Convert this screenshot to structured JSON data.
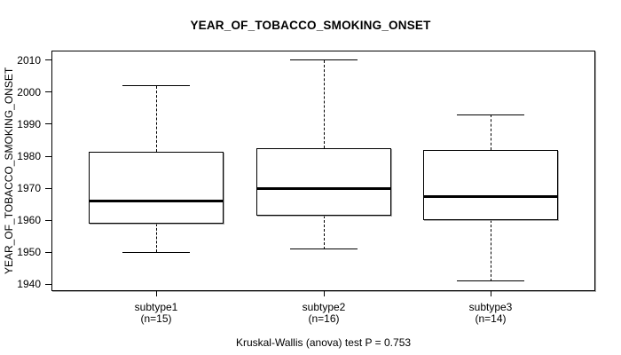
{
  "figure": {
    "title": "YEAR_OF_TOBACCO_SMOKING_ONSET",
    "caption": "Kruskal-Wallis (anova) test P = 0.753"
  },
  "chart_data": {
    "type": "boxplot",
    "title": "YEAR_OF_TOBACCO_SMOKING_ONSET",
    "ylabel": "YEAR_OF_TOBACCO_SMOKING_ONSET",
    "xlabel": "",
    "categories": [
      "subtype1",
      "subtype2",
      "subtype3"
    ],
    "category_sublabels": [
      "(n=15)",
      "(n=16)",
      "(n=14)"
    ],
    "sample_sizes": [
      15,
      16,
      14
    ],
    "y_ticks": [
      1940,
      1950,
      1960,
      1970,
      1980,
      1990,
      2000,
      2010
    ],
    "ylim": [
      1938,
      2013
    ],
    "grid": false,
    "legend": "none",
    "series": [
      {
        "name": "subtype1",
        "n": 15,
        "whisker_low": 1950,
        "q1": 1959,
        "median": 1966,
        "q3": 1981.5,
        "whisker_high": 2002,
        "outliers": []
      },
      {
        "name": "subtype2",
        "n": 16,
        "whisker_low": 1951,
        "q1": 1961.5,
        "median": 1970,
        "q3": 1982.5,
        "whisker_high": 2010,
        "outliers": []
      },
      {
        "name": "subtype3",
        "n": 14,
        "whisker_low": 1941,
        "q1": 1960,
        "median": 1967.5,
        "q3": 1982,
        "whisker_high": 1993,
        "outliers": []
      }
    ],
    "annotation": "Kruskal-Wallis (anova) test P = 0.753"
  }
}
